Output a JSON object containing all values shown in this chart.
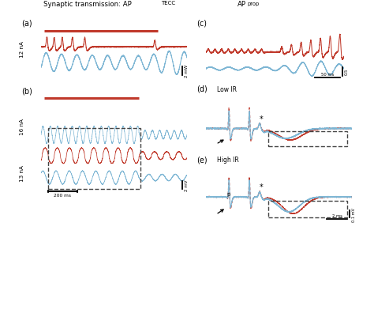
{
  "red": "#C0392B",
  "blue": "#7EB6D4",
  "bg": "#FFFFFF",
  "dash_color": "#444444",
  "title_left": "Synaptic transmission: AP",
  "title_sub": "TECC",
  "title_right": "AP",
  "title_right_sub": "prop",
  "panels": [
    "(a)",
    "(b)",
    "(c)",
    "(d)",
    "(e)"
  ],
  "c12": "12 nA",
  "c16": "16 nA",
  "c13": "13 nA",
  "low_ir": "Low IR",
  "high_ir": "High IR",
  "sc_2mW": "2 mW",
  "sc_2mV": "2 mV",
  "sc_200ms": "200 ms",
  "sc_50ms": "50 ms",
  "sc_05mV": "0.5",
  "sc_2ms": "2 ms",
  "sc_01mV": "0.1 mV"
}
